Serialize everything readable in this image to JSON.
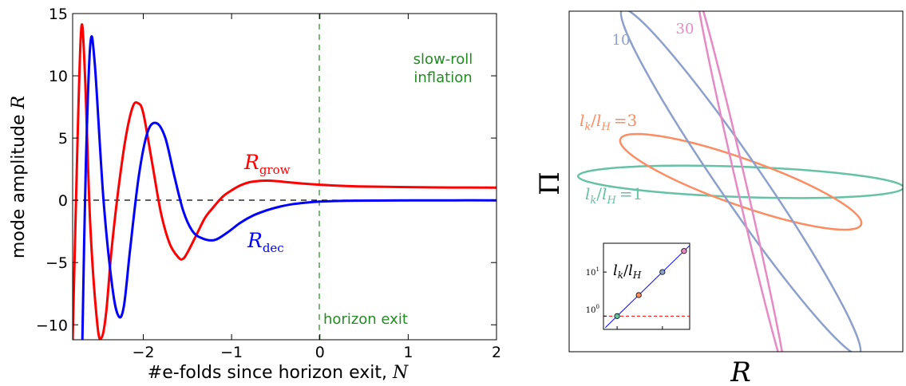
{
  "chart_data": [
    {
      "type": "line",
      "xlabel_text": "#e-folds since horizon exit, ",
      "xlabel_var": "N",
      "ylabel_text": "mode amplitude ",
      "ylabel_var": "R",
      "xlim": [
        -2.8,
        2.0
      ],
      "ylim": [
        -11.2,
        15.0
      ],
      "xticks": [
        -2,
        -1,
        0,
        1,
        2
      ],
      "xtick_labels": [
        "−2",
        "−1",
        "0",
        "1",
        "2"
      ],
      "yticks": [
        -10,
        -5,
        0,
        5,
        10,
        15
      ],
      "ytick_labels": [
        "−10",
        "−5",
        "0",
        "5",
        "10",
        "15"
      ],
      "zero_line": {
        "y": 0,
        "style": "dashed",
        "color": "#000000"
      },
      "vline": {
        "x": 0,
        "style": "dashed",
        "color": "#228b22"
      },
      "annotations": {
        "slow_roll_1": "slow-roll",
        "slow_roll_2": "inflation",
        "horizon_exit": "horizon exit",
        "grow_main": "R",
        "grow_sub": "grow",
        "dec_main": "R",
        "dec_sub": "dec"
      },
      "series": [
        {
          "color": "#ff0000",
          "x": [
            -2.8,
            -2.74,
            -2.7,
            -2.66,
            -2.6,
            -2.52,
            -2.47,
            -2.42,
            -2.36,
            -2.28,
            -2.2,
            -2.12,
            -2.06,
            -2.0,
            -1.9,
            -1.8,
            -1.7,
            -1.6,
            -1.55,
            -1.5,
            -1.4,
            -1.3,
            -1.2,
            -1.1,
            -1.0,
            -0.9,
            -0.8,
            -0.7,
            -0.6,
            -0.5,
            -0.4,
            -0.2,
            0.0,
            0.3,
            0.6,
            1.0,
            1.5,
            2.0
          ],
          "y": [
            -11.2,
            6.0,
            14.0,
            10.0,
            -2.0,
            -10.0,
            -11.0,
            -9.0,
            -4.0,
            1.0,
            5.0,
            7.5,
            7.8,
            7.0,
            3.0,
            -1.0,
            -3.5,
            -4.6,
            -4.7,
            -4.2,
            -2.8,
            -1.4,
            -0.5,
            0.3,
            0.8,
            1.2,
            1.45,
            1.55,
            1.58,
            1.55,
            1.48,
            1.35,
            1.25,
            1.15,
            1.1,
            1.06,
            1.03,
            1.02
          ]
        },
        {
          "color": "#0000ff",
          "x": [
            -2.69,
            -2.65,
            -2.6,
            -2.55,
            -2.45,
            -2.35,
            -2.28,
            -2.22,
            -2.15,
            -2.05,
            -1.95,
            -1.85,
            -1.75,
            -1.65,
            -1.55,
            -1.45,
            -1.35,
            -1.2,
            -1.05,
            -0.9,
            -0.75,
            -0.6,
            -0.45,
            -0.3,
            -0.15,
            0.0,
            0.3,
            0.6,
            1.0,
            1.5,
            2.0
          ],
          "y": [
            -11.2,
            3.0,
            12.5,
            11.0,
            0.0,
            -7.0,
            -9.3,
            -8.5,
            -4.0,
            2.0,
            5.5,
            6.2,
            5.0,
            2.0,
            -0.8,
            -2.4,
            -3.0,
            -3.2,
            -2.6,
            -1.8,
            -1.2,
            -0.8,
            -0.5,
            -0.3,
            -0.18,
            -0.1,
            -0.04,
            -0.02,
            -0.01,
            0.0,
            0.0
          ]
        }
      ]
    },
    {
      "type": "line",
      "xlabel_var": "R",
      "ylabel_var": "Π",
      "ellipses": [
        {
          "label_main": "l",
          "label_sub": "k",
          "label_sep": "/",
          "label_sub2": "H",
          "label_eq": "=1",
          "color": "#66c2a5"
        },
        {
          "label_main": "l",
          "label_sub": "k",
          "label_sep": "/",
          "label_sub2": "H",
          "label_eq": "=3",
          "color": "#fc8d62"
        },
        {
          "label": "10",
          "color": "#8da0cb"
        },
        {
          "label": "30",
          "color": "#e78ac3"
        }
      ],
      "inset": {
        "type": "scatter",
        "scale": "log-log",
        "ylabel_main": "l",
        "ylabel_sub": "k",
        "ylabel_sep": "/",
        "ylabel_sub2": "H",
        "yticks_exp": [
          "0",
          "1"
        ],
        "ytick_base": "10",
        "points": [
          1,
          3,
          10,
          30
        ],
        "point_colors": [
          "#66c2a5",
          "#fc8d62",
          "#8da0cb",
          "#e78ac3"
        ],
        "hline": {
          "y": 1,
          "style": "dashed",
          "color": "#ff0000"
        },
        "fit_line_color": "#0000ff"
      }
    }
  ]
}
